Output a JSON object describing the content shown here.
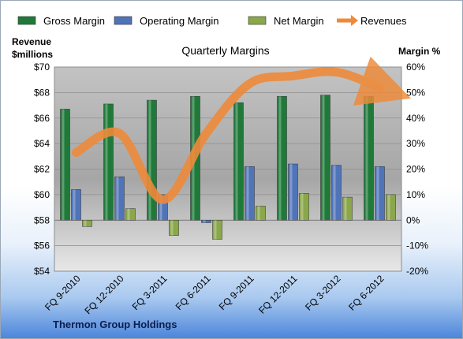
{
  "legend": [
    {
      "label": "Gross Margin",
      "color": "#1f7a3a",
      "icon": "bar-swatch"
    },
    {
      "label": "Operating Margin",
      "color": "#4f74b8",
      "icon": "bar-swatch"
    },
    {
      "label": "Net Margin",
      "color": "#8aa74a",
      "icon": "bar-swatch"
    },
    {
      "label": "Revenues",
      "color": "#ee8a3a",
      "icon": "arrow-swatch"
    }
  ],
  "footer": {
    "company": "Thermon Group Holdings"
  },
  "colors": {
    "gross": "#1f7a3a",
    "operating": "#4f74b8",
    "net": "#8aa74a",
    "revenue": "#ee8a3a"
  },
  "chart_data": {
    "type": "bar",
    "title": "Quarterly Margins",
    "ylabel_left": "Revenue $millions",
    "ylabel_left_lines": [
      "Revenue",
      "$millions"
    ],
    "ylabel_right": "Margin %",
    "categories": [
      "FQ 9-2010",
      "FQ 12-2010",
      "FQ 3-2011",
      "FQ 6-2011",
      "FQ 9-2011",
      "FQ 12-2011",
      "FQ 3-2012",
      "FQ 6-2012"
    ],
    "y_left_ticks": [
      "$54",
      "$56",
      "$58",
      "$60",
      "$62",
      "$64",
      "$66",
      "$68",
      "$70"
    ],
    "y_right_ticks": [
      "-20%",
      "-10%",
      "0%",
      "10%",
      "20%",
      "30%",
      "40%",
      "50%",
      "60%"
    ],
    "ylim_left": [
      54,
      70
    ],
    "ylim_right": [
      -20,
      60
    ],
    "series": [
      {
        "name": "Gross Margin",
        "axis": "right",
        "values": [
          43.5,
          45.5,
          47,
          48.5,
          46,
          48.5,
          49,
          48.5
        ]
      },
      {
        "name": "Operating Margin",
        "axis": "right",
        "values": [
          12,
          17,
          10,
          -1,
          21,
          22,
          21.5,
          21
        ]
      },
      {
        "name": "Net Margin",
        "axis": "right",
        "values": [
          -2.5,
          4.5,
          -6,
          -7.5,
          5.5,
          10.5,
          9,
          10
        ]
      },
      {
        "name": "Revenues",
        "axis": "left",
        "type": "line",
        "values": [
          63.3,
          64.8,
          59.6,
          64.8,
          68.7,
          69.3,
          69.6,
          68.4
        ]
      }
    ]
  }
}
